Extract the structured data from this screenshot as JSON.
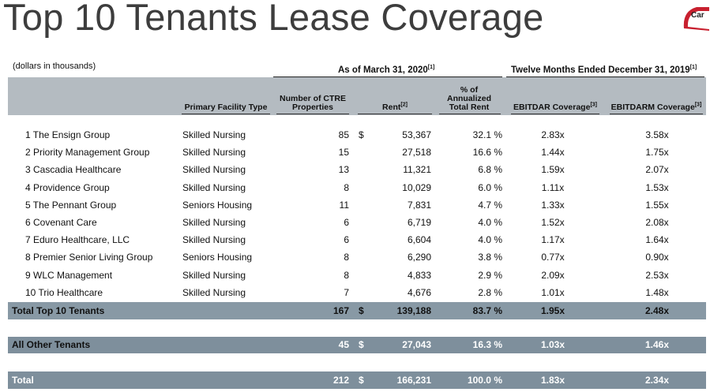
{
  "title": "Top 10 Tenants Lease Coverage",
  "logo": {
    "text": "Car",
    "icon": "company-logo-icon",
    "color": "#c8202f"
  },
  "unit_note": "(dollars in thousands)",
  "periods": {
    "as_of": "As of March 31, 2020",
    "as_of_note": "[1]",
    "twelve_months": "Twelve Months Ended December 31, 2019",
    "twelve_months_note": "[1]"
  },
  "headers": {
    "facility_type": "Primary Facility Type",
    "properties_line1": "Number of CTRE",
    "properties_line2": "Properties",
    "rent": "Rent",
    "rent_note": "[2]",
    "pct_line1": "% of",
    "pct_line2": "Annualized",
    "pct_line3": "Total Rent",
    "ebitdar": "EBITDAR Coverage",
    "ebitdar_note": "[3]",
    "ebitdarm": "EBITDARM Coverage",
    "ebitdarm_note": "[3]"
  },
  "rows": [
    {
      "name": "1 The Ensign Group",
      "type": "Skilled Nursing",
      "properties": "85",
      "dollar": "$",
      "rent": "53,367",
      "pct": "32.1 %",
      "ebitdar": "2.83x",
      "ebitdarm": "3.58x"
    },
    {
      "name": "2 Priority Management Group",
      "type": "Skilled Nursing",
      "properties": "15",
      "dollar": "",
      "rent": "27,518",
      "pct": "16.6 %",
      "ebitdar": "1.44x",
      "ebitdarm": "1.75x"
    },
    {
      "name": "3 Cascadia Healthcare",
      "type": "Skilled Nursing",
      "properties": "13",
      "dollar": "",
      "rent": "11,321",
      "pct": "6.8 %",
      "ebitdar": "1.59x",
      "ebitdarm": "2.07x"
    },
    {
      "name": "4 Providence Group",
      "type": "Skilled Nursing",
      "properties": "8",
      "dollar": "",
      "rent": "10,029",
      "pct": "6.0 %",
      "ebitdar": "1.11x",
      "ebitdarm": "1.53x"
    },
    {
      "name": "5 The Pennant Group",
      "type": "Seniors Housing",
      "properties": "11",
      "dollar": "",
      "rent": "7,831",
      "pct": "4.7 %",
      "ebitdar": "1.33x",
      "ebitdarm": "1.55x"
    },
    {
      "name": "6 Covenant Care",
      "type": "Skilled Nursing",
      "properties": "6",
      "dollar": "",
      "rent": "6,719",
      "pct": "4.0 %",
      "ebitdar": "1.52x",
      "ebitdarm": "2.08x"
    },
    {
      "name": "7 Eduro Healthcare, LLC",
      "type": "Skilled Nursing",
      "properties": "6",
      "dollar": "",
      "rent": "6,604",
      "pct": "4.0 %",
      "ebitdar": "1.17x",
      "ebitdarm": "1.64x"
    },
    {
      "name": "8 Premier Senior Living Group",
      "type": "Seniors Housing",
      "properties": "8",
      "dollar": "",
      "rent": "6,290",
      "pct": "3.8 %",
      "ebitdar": "0.77x",
      "ebitdarm": "0.90x"
    },
    {
      "name": "9 WLC Management",
      "type": "Skilled Nursing",
      "properties": "8",
      "dollar": "",
      "rent": "4,833",
      "pct": "2.9 %",
      "ebitdar": "2.09x",
      "ebitdarm": "2.53x"
    },
    {
      "name": "10 Trio Healthcare",
      "type": "Skilled Nursing",
      "properties": "7",
      "dollar": "",
      "rent": "4,676",
      "pct": "2.8 %",
      "ebitdar": "1.01x",
      "ebitdarm": "1.48x"
    }
  ],
  "totals": {
    "top10": {
      "name": "Total Top 10 Tenants",
      "properties": "167",
      "dollar": "$",
      "rent": "139,188",
      "pct": "83.7 %",
      "ebitdar": "1.95x",
      "ebitdarm": "2.48x"
    },
    "others": {
      "name": "All Other Tenants",
      "properties": "45",
      "dollar": "$",
      "rent": "27,043",
      "pct": "16.3 %",
      "ebitdar": "1.03x",
      "ebitdarm": "1.46x"
    },
    "total": {
      "name": "Total",
      "properties": "212",
      "dollar": "$",
      "rent": "166,231",
      "pct": "100.0 %",
      "ebitdar": "1.83x",
      "ebitdarm": "2.34x"
    }
  }
}
